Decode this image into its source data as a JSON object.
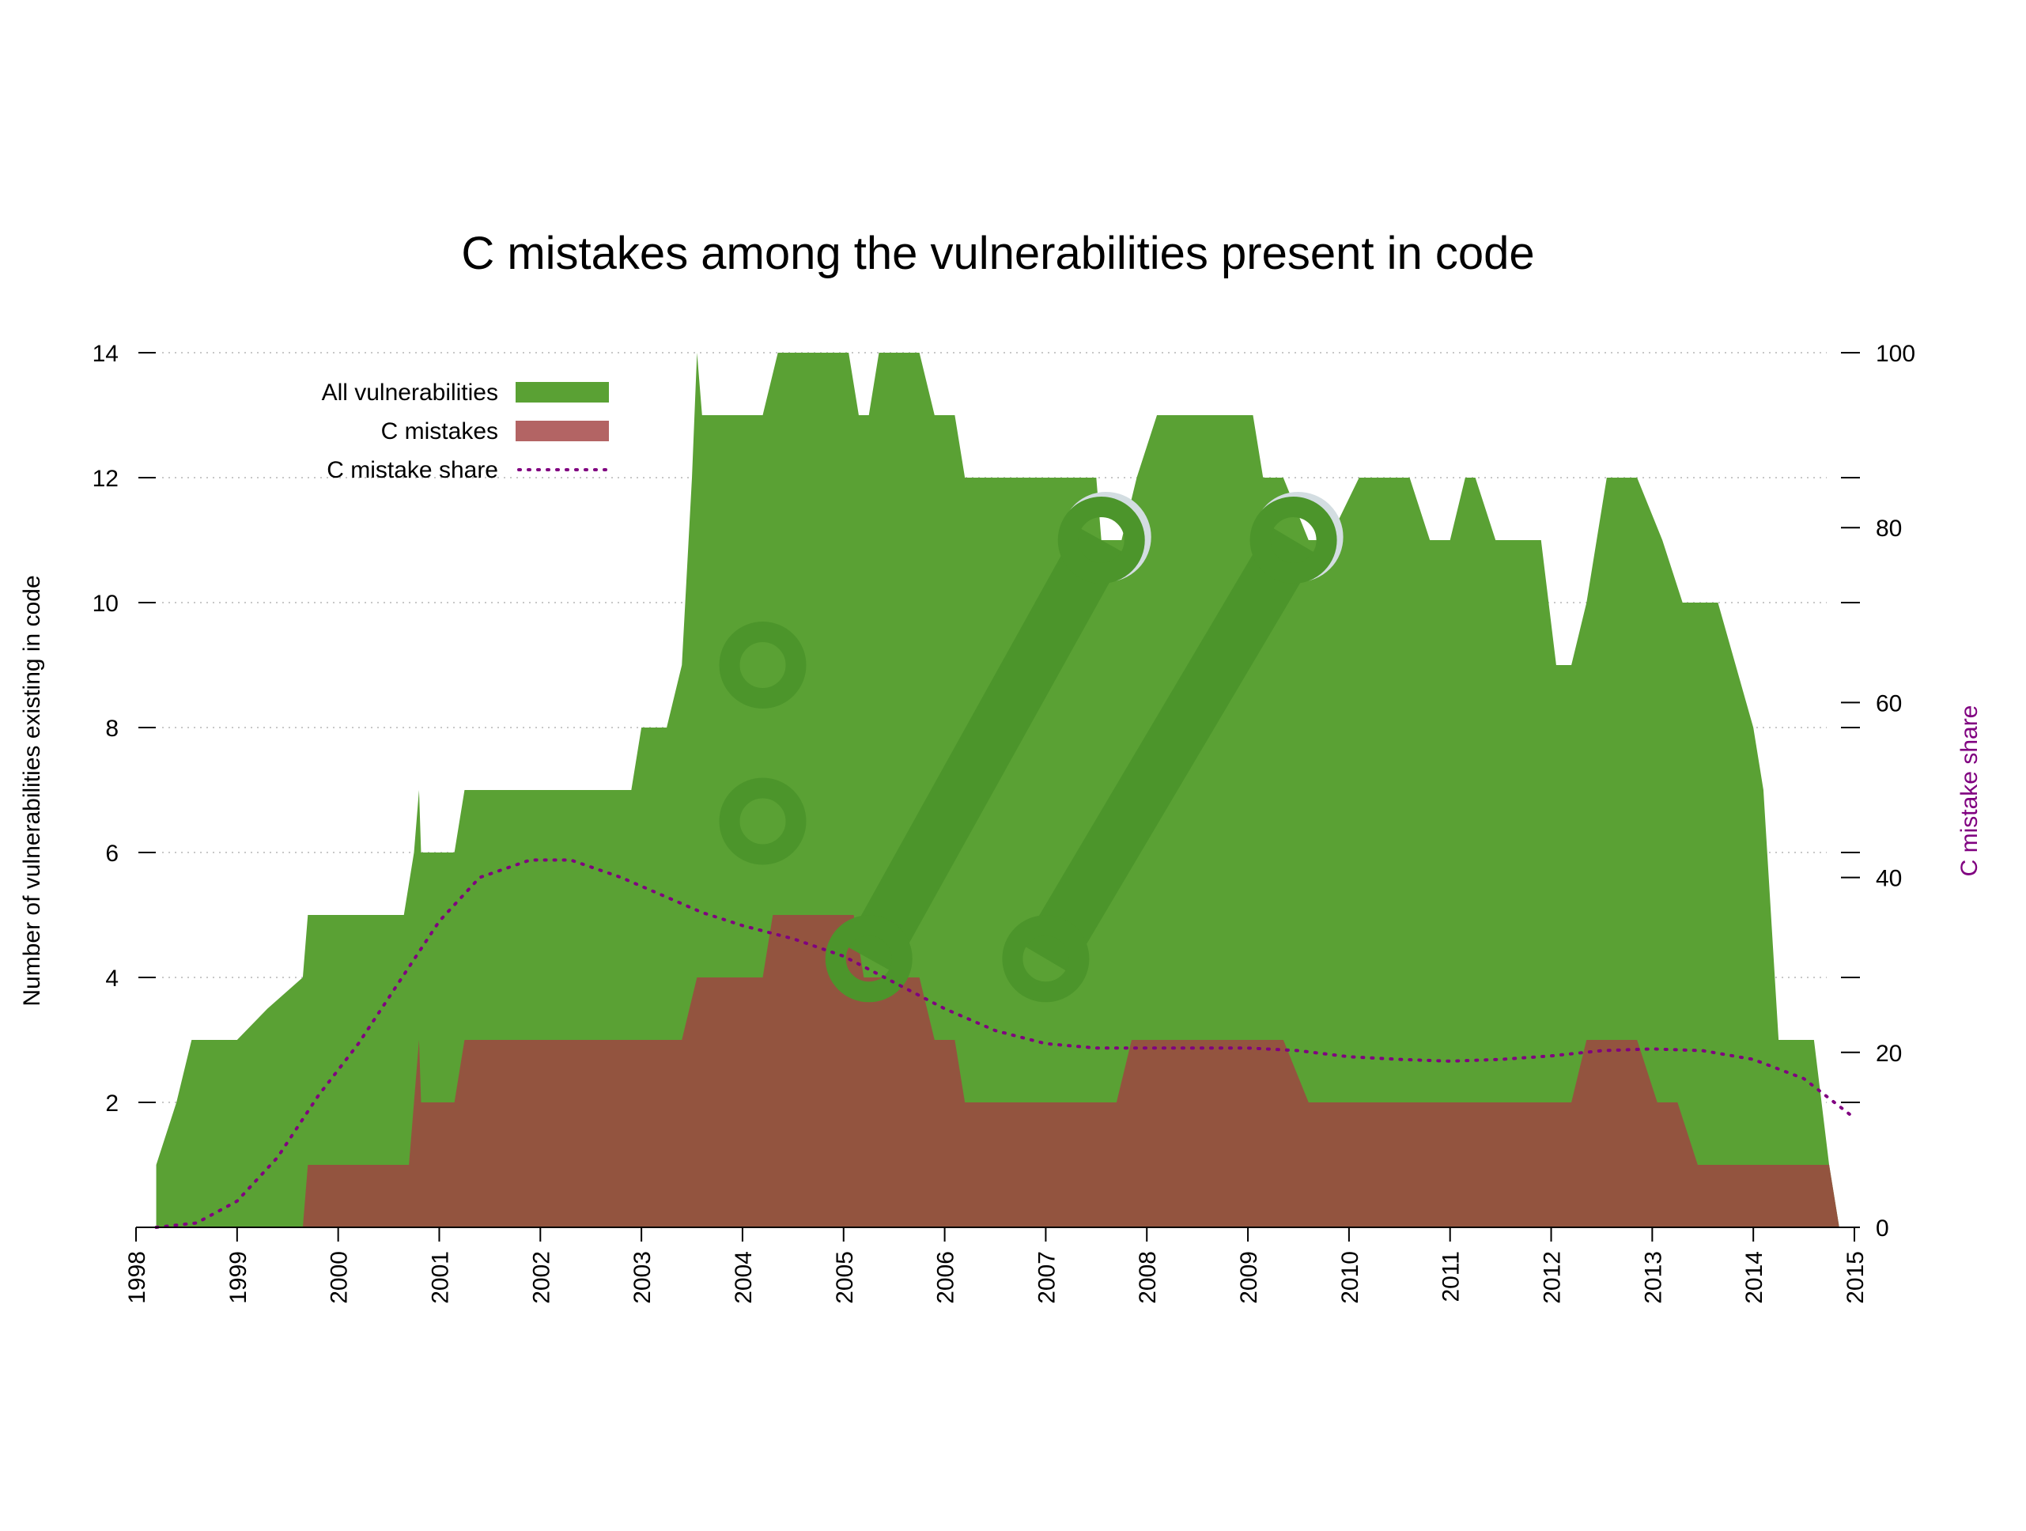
{
  "chart_data": {
    "type": "area",
    "title": "C mistakes among the vulnerabilities present in code",
    "ylabel": "Number of vulnerabilities existing in code",
    "y2label": "C mistake share",
    "xlim": [
      1998,
      2015
    ],
    "ylim": [
      0,
      14
    ],
    "y2lim": [
      0,
      100
    ],
    "xticks": [
      "1998",
      "1999",
      "2000",
      "2001",
      "2002",
      "2003",
      "2004",
      "2005",
      "2006",
      "2007",
      "2008",
      "2009",
      "2010",
      "2011",
      "2012",
      "2013",
      "2014",
      "2015"
    ],
    "yticks": [
      "2",
      "4",
      "6",
      "8",
      "10",
      "12",
      "14"
    ],
    "y2ticks": [
      "0",
      "20",
      "40",
      "60",
      "80",
      "100"
    ],
    "grid": true,
    "legend_position": "top-left",
    "colors": {
      "all": "#5aa134",
      "c": "#93543f",
      "legend_c": "#b36464",
      "share": "#800080",
      "watermark": "#4c952b",
      "watermark_bg": "#d3dde1"
    },
    "series": [
      {
        "name": "All vulnerabilities",
        "color": "#5aa134",
        "points": [
          [
            1998.2,
            1
          ],
          [
            1998.4,
            2
          ],
          [
            1998.55,
            3
          ],
          [
            1999.0,
            3
          ],
          [
            1999.3,
            3.5
          ],
          [
            1999.65,
            4
          ],
          [
            1999.7,
            5
          ],
          [
            2000.65,
            5
          ],
          [
            2000.75,
            6
          ],
          [
            2000.8,
            7
          ],
          [
            2000.82,
            6
          ],
          [
            2001.15,
            6
          ],
          [
            2001.25,
            7
          ],
          [
            2002.9,
            7
          ],
          [
            2003.0,
            8
          ],
          [
            2003.25,
            8
          ],
          [
            2003.4,
            9
          ],
          [
            2003.5,
            12
          ],
          [
            2003.55,
            14
          ],
          [
            2003.6,
            13
          ],
          [
            2004.2,
            13
          ],
          [
            2004.35,
            14
          ],
          [
            2005.05,
            14
          ],
          [
            2005.15,
            13
          ],
          [
            2005.25,
            13
          ],
          [
            2005.35,
            14
          ],
          [
            2005.75,
            14
          ],
          [
            2005.9,
            13
          ],
          [
            2006.1,
            13
          ],
          [
            2006.2,
            12
          ],
          [
            2007.5,
            12
          ],
          [
            2007.55,
            11
          ],
          [
            2007.75,
            11
          ],
          [
            2007.9,
            12
          ],
          [
            2008.1,
            13
          ],
          [
            2009.05,
            13
          ],
          [
            2009.15,
            12
          ],
          [
            2009.35,
            12
          ],
          [
            2009.6,
            11
          ],
          [
            2009.8,
            11
          ],
          [
            2010.1,
            12
          ],
          [
            2010.6,
            12
          ],
          [
            2010.8,
            11
          ],
          [
            2011.0,
            11
          ],
          [
            2011.15,
            12
          ],
          [
            2011.25,
            12
          ],
          [
            2011.45,
            11
          ],
          [
            2011.9,
            11
          ],
          [
            2012.05,
            9
          ],
          [
            2012.2,
            9
          ],
          [
            2012.35,
            10
          ],
          [
            2012.55,
            12
          ],
          [
            2012.85,
            12
          ],
          [
            2013.1,
            11
          ],
          [
            2013.3,
            10
          ],
          [
            2013.65,
            10
          ],
          [
            2014.0,
            8
          ],
          [
            2014.1,
            7
          ],
          [
            2014.25,
            3
          ],
          [
            2014.6,
            3
          ],
          [
            2014.75,
            1
          ],
          [
            2014.85,
            0
          ]
        ]
      },
      {
        "name": "C mistakes",
        "color": "#93543f",
        "points": [
          [
            1999.65,
            0
          ],
          [
            1999.7,
            1
          ],
          [
            2000.7,
            1
          ],
          [
            2000.8,
            3
          ],
          [
            2000.82,
            2
          ],
          [
            2001.15,
            2
          ],
          [
            2001.25,
            3
          ],
          [
            2003.4,
            3
          ],
          [
            2003.55,
            4
          ],
          [
            2004.2,
            4
          ],
          [
            2004.3,
            5
          ],
          [
            2005.1,
            5
          ],
          [
            2005.2,
            4
          ],
          [
            2005.75,
            4
          ],
          [
            2005.9,
            3
          ],
          [
            2006.1,
            3
          ],
          [
            2006.2,
            2
          ],
          [
            2007.7,
            2
          ],
          [
            2007.85,
            3
          ],
          [
            2009.35,
            3
          ],
          [
            2009.6,
            2
          ],
          [
            2012.2,
            2
          ],
          [
            2012.35,
            3
          ],
          [
            2012.85,
            3
          ],
          [
            2013.05,
            2
          ],
          [
            2013.25,
            2
          ],
          [
            2013.45,
            1
          ],
          [
            2014.75,
            1
          ],
          [
            2014.85,
            0
          ]
        ]
      },
      {
        "name": "C mistake share",
        "color": "#800080",
        "style": "dotted",
        "points": [
          [
            1998.2,
            0
          ],
          [
            1998.6,
            0.5
          ],
          [
            1999.0,
            3
          ],
          [
            1999.4,
            8
          ],
          [
            1999.8,
            15
          ],
          [
            2000.2,
            21
          ],
          [
            2000.6,
            28
          ],
          [
            2001.0,
            35
          ],
          [
            2001.4,
            40
          ],
          [
            2001.9,
            42
          ],
          [
            2002.3,
            42
          ],
          [
            2002.8,
            40
          ],
          [
            2003.2,
            38
          ],
          [
            2003.6,
            36
          ],
          [
            2004.0,
            34.5
          ],
          [
            2004.5,
            33
          ],
          [
            2005.0,
            31
          ],
          [
            2005.5,
            28
          ],
          [
            2006.0,
            25
          ],
          [
            2006.5,
            22.5
          ],
          [
            2007.0,
            21
          ],
          [
            2007.5,
            20.5
          ],
          [
            2008.0,
            20.5
          ],
          [
            2008.5,
            20.5
          ],
          [
            2009.0,
            20.5
          ],
          [
            2009.5,
            20.2
          ],
          [
            2010.0,
            19.5
          ],
          [
            2010.5,
            19.2
          ],
          [
            2011.0,
            19
          ],
          [
            2011.5,
            19.2
          ],
          [
            2012.0,
            19.6
          ],
          [
            2012.5,
            20.2
          ],
          [
            2013.0,
            20.4
          ],
          [
            2013.5,
            20.2
          ],
          [
            2014.0,
            19.2
          ],
          [
            2014.5,
            17
          ],
          [
            2015.0,
            12.5
          ]
        ]
      }
    ],
    "watermark": {
      "rings": [
        [
          2004.2,
          9
        ],
        [
          2004.2,
          6.5
        ],
        [
          2005.25,
          4.3
        ],
        [
          2007.0,
          4.3
        ],
        [
          2007.55,
          11
        ],
        [
          2009.45,
          11
        ]
      ],
      "bars": [
        [
          [
            2005.25,
            4.3
          ],
          [
            2007.55,
            11
          ]
        ],
        [
          [
            2007.0,
            4.3
          ],
          [
            2009.45,
            11
          ]
        ]
      ]
    }
  }
}
